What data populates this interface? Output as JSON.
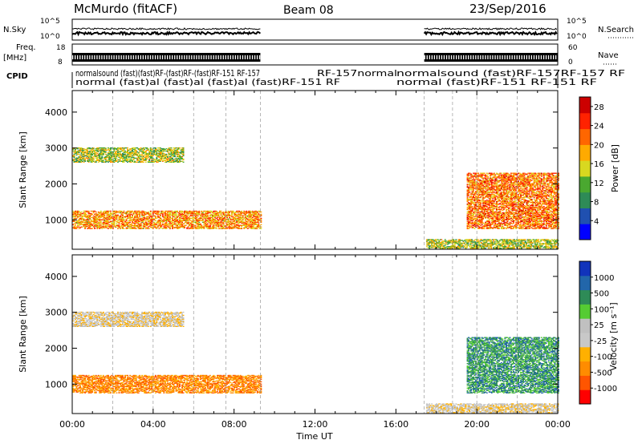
{
  "header": {
    "station": "McMurdo (fitACF)",
    "beam": "Beam 08",
    "date": "23/Sep/2016"
  },
  "strip_labels": {
    "nsky": "N.Sky",
    "nsky_ticks": [
      "10^5",
      "10^0"
    ],
    "nsearch": "N.Search",
    "freq": "Freq.",
    "freq_unit": "[MHz]",
    "freq_ticks": [
      "18",
      "8"
    ],
    "nave": "Nave",
    "nave_ticks": [
      "60",
      "0"
    ],
    "cpid": "CPID"
  },
  "cpid_labels": {
    "segment1_row1": "normalsound (fast)(fast)RF-(fast)RF-(fast)RF-151 RF-157",
    "segment1_row2": "normal (fast)al (fast)al (fast)al (fast)RF-151 RF",
    "mid_row1": "RF-157normal",
    "segment2_row1": "normalsound (fast)RF-157RF-157 RF",
    "segment2_row2": "normal (fast)RF-151 RF-151 RF"
  },
  "colors": {
    "power_scale": [
      "#0000ff",
      "#2050b0",
      "#2e8b57",
      "#4aa830",
      "#d8d820",
      "#ffaa00",
      "#ff6600",
      "#ff2200",
      "#cc0000"
    ],
    "velocity_scale": [
      "#ff0000",
      "#ff5500",
      "#ff8c00",
      "#ffb000",
      "#c8c8c8",
      "#c0c0c0",
      "#55cc33",
      "#2e8b57",
      "#2266aa",
      "#1133bb"
    ]
  },
  "chart_data": [
    {
      "type": "heatmap",
      "name": "Power",
      "xlabel": "",
      "ylabel": "Slant Range [km]",
      "xlim": [
        "00:00",
        "24:00"
      ],
      "ylim": [
        180,
        4600
      ],
      "yticks": [
        1000,
        2000,
        3000,
        4000
      ],
      "xticks": [
        "00:00",
        "04:00",
        "08:00",
        "12:00",
        "16:00",
        "20:00",
        "00:00"
      ],
      "colorbar": {
        "label": "Power [dB]",
        "ticks": [
          4,
          8,
          12,
          16,
          20,
          24,
          28
        ],
        "range": [
          0,
          30
        ]
      },
      "data_gaps": [
        [
          9.3,
          17.4
        ]
      ],
      "echo_regions": [
        {
          "start": 0.0,
          "end": 9.3,
          "range_low": 750,
          "range_high": 1250,
          "level": 20
        },
        {
          "start": 0.0,
          "end": 5.5,
          "range_low": 2600,
          "range_high": 3000,
          "level": 14
        },
        {
          "start": 17.5,
          "end": 24.0,
          "range_low": 200,
          "range_high": 450,
          "level": 14
        },
        {
          "start": 19.5,
          "end": 24.0,
          "range_low": 750,
          "range_high": 2300,
          "level": 22
        }
      ]
    },
    {
      "type": "heatmap",
      "name": "Velocity",
      "xlabel": "Time UT",
      "ylabel": "Slant Range [km]",
      "xlim": [
        "00:00",
        "24:00"
      ],
      "ylim": [
        180,
        4600
      ],
      "yticks": [
        1000,
        2000,
        3000,
        4000
      ],
      "xticks": [
        "00:00",
        "04:00",
        "08:00",
        "12:00",
        "16:00",
        "20:00",
        "00:00"
      ],
      "colorbar": {
        "label": "Velocity [m s⁻¹]",
        "ticks": [
          "1000",
          "500",
          "100",
          "25",
          "-25",
          "-100",
          "-500",
          "-1000"
        ]
      },
      "data_gaps": [
        [
          9.3,
          17.4
        ]
      ],
      "echo_regions": [
        {
          "start": 0.0,
          "end": 9.3,
          "range_low": 750,
          "range_high": 1250,
          "level": -150
        },
        {
          "start": 0.0,
          "end": 5.5,
          "range_low": 2600,
          "range_high": 3000,
          "level": 0
        },
        {
          "start": 17.5,
          "end": 24.0,
          "range_low": 200,
          "range_high": 450,
          "level": 50
        },
        {
          "start": 19.5,
          "end": 24.0,
          "range_low": 750,
          "range_high": 2300,
          "level": 100
        }
      ]
    }
  ]
}
